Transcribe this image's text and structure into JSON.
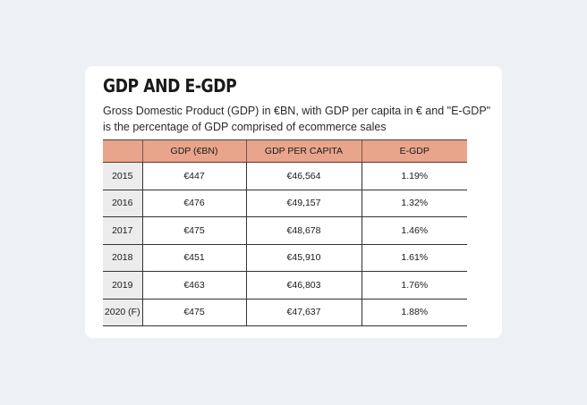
{
  "title": "GDP AND E-GDP",
  "subtitle": "Gross Domestic Product (GDP) in €BN, with GDP per capita in € and \"E-GDP\" is the percentage of GDP comprised of ecommerce sales",
  "colors": {
    "background": "#edf1f5",
    "card": "#ffffff",
    "header_fill": "#e8a58c",
    "year_column_fill": "#ececec"
  },
  "chart_data": {
    "type": "table",
    "title": "GDP AND E-GDP",
    "columns": [
      "",
      "GDP (€BN)",
      "GDP PER CAPITA",
      "E-GDP"
    ],
    "rows": [
      [
        "2015",
        "€447",
        "€46,564",
        "1.19%"
      ],
      [
        "2016",
        "€476",
        "€49,157",
        "1.32%"
      ],
      [
        "2017",
        "€475",
        "€48,678",
        "1.46%"
      ],
      [
        "2018",
        "€451",
        "€45,910",
        "1.61%"
      ],
      [
        "2019",
        "€463",
        "€46,803",
        "1.76%"
      ],
      [
        "2020 (F)",
        "€475",
        "€47,637",
        "1.88%"
      ]
    ]
  }
}
